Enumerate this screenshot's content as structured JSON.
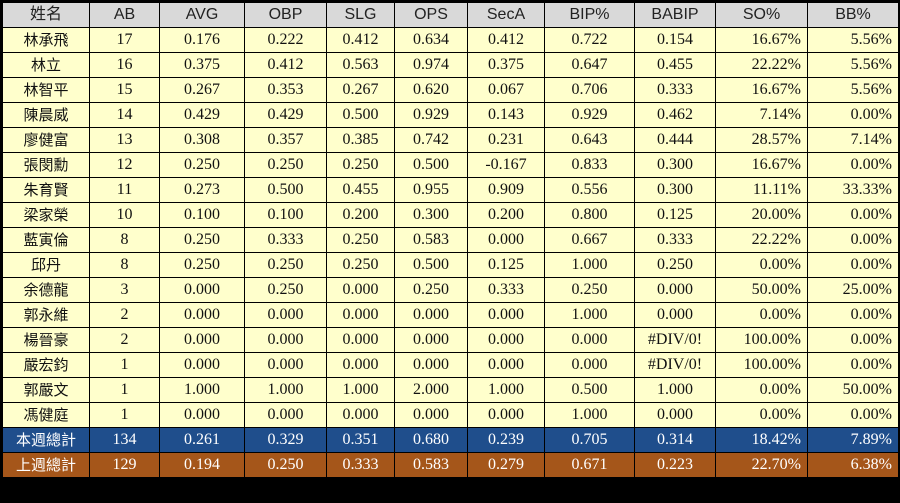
{
  "columns": [
    "姓名",
    "AB",
    "AVG",
    "OBP",
    "SLG",
    "OPS",
    "SecA",
    "BIP%",
    "BABIP",
    "SO%",
    "BB%"
  ],
  "rows": [
    [
      "林承飛",
      "17",
      "0.176",
      "0.222",
      "0.412",
      "0.634",
      "0.412",
      "0.722",
      "0.154",
      "16.67%",
      "5.56%"
    ],
    [
      "林立",
      "16",
      "0.375",
      "0.412",
      "0.563",
      "0.974",
      "0.375",
      "0.647",
      "0.455",
      "22.22%",
      "5.56%"
    ],
    [
      "林智平",
      "15",
      "0.267",
      "0.353",
      "0.267",
      "0.620",
      "0.067",
      "0.706",
      "0.333",
      "16.67%",
      "5.56%"
    ],
    [
      "陳晨威",
      "14",
      "0.429",
      "0.429",
      "0.500",
      "0.929",
      "0.143",
      "0.929",
      "0.462",
      "7.14%",
      "0.00%"
    ],
    [
      "廖健富",
      "13",
      "0.308",
      "0.357",
      "0.385",
      "0.742",
      "0.231",
      "0.643",
      "0.444",
      "28.57%",
      "7.14%"
    ],
    [
      "張閔勳",
      "12",
      "0.250",
      "0.250",
      "0.250",
      "0.500",
      "-0.167",
      "0.833",
      "0.300",
      "16.67%",
      "0.00%"
    ],
    [
      "朱育賢",
      "11",
      "0.273",
      "0.500",
      "0.455",
      "0.955",
      "0.909",
      "0.556",
      "0.300",
      "11.11%",
      "33.33%"
    ],
    [
      "梁家榮",
      "10",
      "0.100",
      "0.100",
      "0.200",
      "0.300",
      "0.200",
      "0.800",
      "0.125",
      "20.00%",
      "0.00%"
    ],
    [
      "藍寅倫",
      "8",
      "0.250",
      "0.333",
      "0.250",
      "0.583",
      "0.000",
      "0.667",
      "0.333",
      "22.22%",
      "0.00%"
    ],
    [
      "邱丹",
      "8",
      "0.250",
      "0.250",
      "0.250",
      "0.500",
      "0.125",
      "1.000",
      "0.250",
      "0.00%",
      "0.00%"
    ],
    [
      "余德龍",
      "3",
      "0.000",
      "0.250",
      "0.000",
      "0.250",
      "0.333",
      "0.250",
      "0.000",
      "50.00%",
      "25.00%"
    ],
    [
      "郭永維",
      "2",
      "0.000",
      "0.000",
      "0.000",
      "0.000",
      "0.000",
      "1.000",
      "0.000",
      "0.00%",
      "0.00%"
    ],
    [
      "楊晉豪",
      "2",
      "0.000",
      "0.000",
      "0.000",
      "0.000",
      "0.000",
      "0.000",
      "#DIV/0!",
      "100.00%",
      "0.00%"
    ],
    [
      "嚴宏鈞",
      "1",
      "0.000",
      "0.000",
      "0.000",
      "0.000",
      "0.000",
      "0.000",
      "#DIV/0!",
      "100.00%",
      "0.00%"
    ],
    [
      "郭嚴文",
      "1",
      "1.000",
      "1.000",
      "1.000",
      "2.000",
      "1.000",
      "0.500",
      "1.000",
      "0.00%",
      "50.00%"
    ],
    [
      "馮健庭",
      "1",
      "0.000",
      "0.000",
      "0.000",
      "0.000",
      "0.000",
      "1.000",
      "0.000",
      "0.00%",
      "0.00%"
    ]
  ],
  "totals": [
    [
      "本週總計",
      "134",
      "0.261",
      "0.329",
      "0.351",
      "0.680",
      "0.239",
      "0.705",
      "0.314",
      "18.42%",
      "7.89%"
    ],
    [
      "上週總計",
      "129",
      "0.194",
      "0.250",
      "0.333",
      "0.583",
      "0.279",
      "0.671",
      "0.223",
      "22.70%",
      "6.38%"
    ]
  ],
  "colors": {
    "header_bg": "#d9d9d9",
    "row_bg": "#ffffcc",
    "this_week_bg": "#1f4e8c",
    "last_week_bg": "#a5561a"
  }
}
